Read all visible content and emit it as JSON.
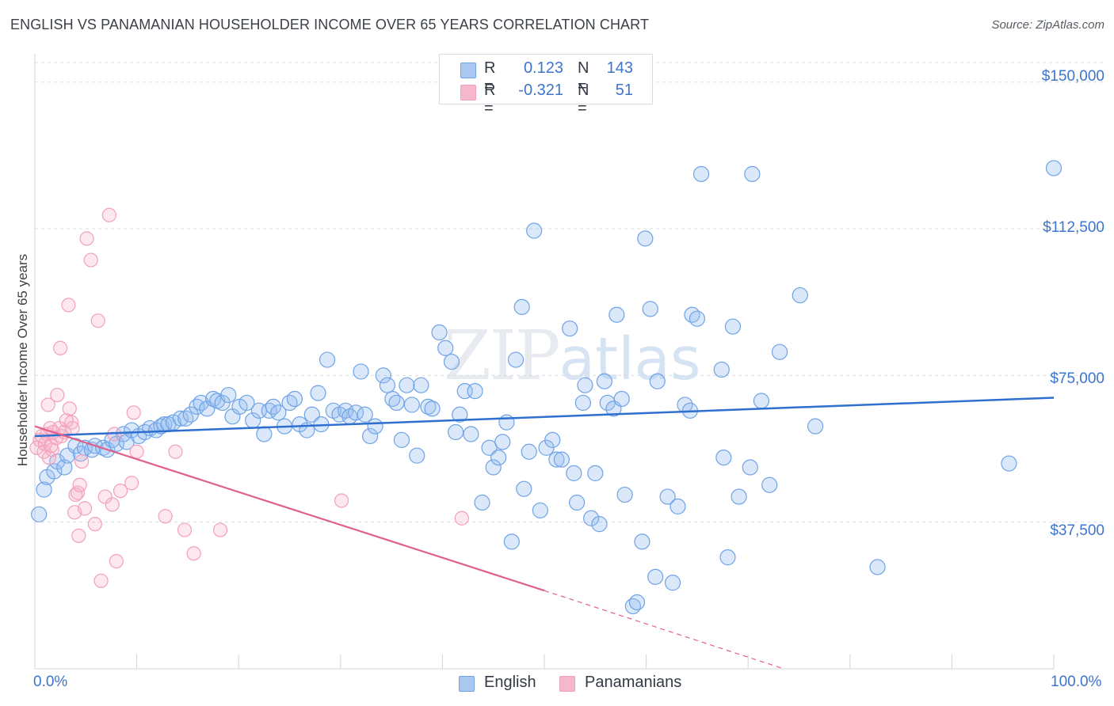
{
  "title": "ENGLISH VS PANAMANIAN HOUSEHOLDER INCOME OVER 65 YEARS CORRELATION CHART",
  "source": "Source: ZipAtlas.com",
  "watermark": {
    "zip": "ZIP",
    "atlas": "atlas"
  },
  "legend": {
    "rows": [
      {
        "r_label": "R =",
        "r_value": "0.123",
        "n_label": "N =",
        "n_value": "143",
        "color": "#aac8ef"
      },
      {
        "r_label": "R =",
        "r_value": "-0.321",
        "n_label": "N =",
        "n_value": "51",
        "color": "#f5b8cb"
      }
    ]
  },
  "colors": {
    "english": "#6fa3e6",
    "english_fill": "rgba(150,190,240,0.35)",
    "english_line": "#2f6fd0",
    "panamanian": "#f2a0bb",
    "panamanian_fill": "rgba(245,180,200,0.30)",
    "panamanian_line": "#e0608a",
    "grid": "#d8dde3",
    "tick_label": "#3d74cc"
  },
  "chart_data": {
    "type": "scatter",
    "title": "ENGLISH VS PANAMANIAN HOUSEHOLDER INCOME OVER 65 YEARS CORRELATION CHART",
    "xlabel": "",
    "ylabel": "Householder Income Over 65 years",
    "xlim": [
      0,
      100
    ],
    "ylim": [
      0,
      155000
    ],
    "x_tick_labels": [
      "0.0%",
      "100.0%"
    ],
    "y_ticks": [
      37500,
      75000,
      112500,
      150000
    ],
    "y_tick_labels": [
      "$37,500",
      "$75,000",
      "$112,500",
      "$150,000"
    ],
    "grid": "horizontal dashed",
    "legend_position": "top-center and bottom",
    "series": [
      {
        "name": "English",
        "r": 0.123,
        "n": 143,
        "trend": {
          "x": [
            0,
            100
          ],
          "y": [
            59500,
            69300
          ]
        },
        "points": [
          [
            0.4,
            39500
          ],
          [
            0.9,
            45800
          ],
          [
            1.2,
            49000
          ],
          [
            1.9,
            50500
          ],
          [
            2.2,
            53000
          ],
          [
            2.9,
            51500
          ],
          [
            3.2,
            54500
          ],
          [
            4.0,
            57000
          ],
          [
            4.5,
            55000
          ],
          [
            4.9,
            56500
          ],
          [
            5.6,
            56000
          ],
          [
            5.9,
            57000
          ],
          [
            6.7,
            56500
          ],
          [
            7.1,
            56000
          ],
          [
            7.6,
            58500
          ],
          [
            8.0,
            57500
          ],
          [
            8.7,
            60000
          ],
          [
            9.0,
            58000
          ],
          [
            9.5,
            61000
          ],
          [
            10.2,
            59500
          ],
          [
            10.8,
            60500
          ],
          [
            11.3,
            61500
          ],
          [
            11.9,
            61000
          ],
          [
            12.4,
            62000
          ],
          [
            12.7,
            62500
          ],
          [
            13.1,
            62500
          ],
          [
            13.6,
            63000
          ],
          [
            14.3,
            64000
          ],
          [
            14.8,
            64000
          ],
          [
            15.3,
            65000
          ],
          [
            15.9,
            67000
          ],
          [
            16.3,
            68000
          ],
          [
            16.9,
            66500
          ],
          [
            17.5,
            69000
          ],
          [
            17.9,
            68500
          ],
          [
            18.4,
            68000
          ],
          [
            19.0,
            70000
          ],
          [
            19.4,
            64500
          ],
          [
            20.1,
            67000
          ],
          [
            20.8,
            68000
          ],
          [
            21.4,
            63500
          ],
          [
            22.0,
            66000
          ],
          [
            22.5,
            60000
          ],
          [
            23.0,
            66000
          ],
          [
            23.4,
            67000
          ],
          [
            23.9,
            65500
          ],
          [
            24.5,
            62000
          ],
          [
            25.0,
            68000
          ],
          [
            25.5,
            69000
          ],
          [
            26.0,
            62500
          ],
          [
            26.7,
            61000
          ],
          [
            27.2,
            65000
          ],
          [
            27.8,
            70500
          ],
          [
            28.1,
            62500
          ],
          [
            28.7,
            79000
          ],
          [
            29.3,
            66000
          ],
          [
            29.9,
            65000
          ],
          [
            30.5,
            66000
          ],
          [
            30.9,
            64500
          ],
          [
            31.5,
            65500
          ],
          [
            32.0,
            76000
          ],
          [
            32.4,
            65000
          ],
          [
            32.9,
            59500
          ],
          [
            33.4,
            62000
          ],
          [
            34.2,
            75000
          ],
          [
            34.6,
            72500
          ],
          [
            35.1,
            69000
          ],
          [
            35.5,
            68000
          ],
          [
            36.0,
            58500
          ],
          [
            36.5,
            72500
          ],
          [
            37.0,
            67500
          ],
          [
            37.5,
            54500
          ],
          [
            37.9,
            72500
          ],
          [
            38.6,
            67000
          ],
          [
            39.0,
            66500
          ],
          [
            39.7,
            86000
          ],
          [
            40.3,
            82000
          ],
          [
            40.9,
            78500
          ],
          [
            41.3,
            60500
          ],
          [
            41.7,
            65000
          ],
          [
            42.2,
            71000
          ],
          [
            42.8,
            60000
          ],
          [
            43.2,
            71000
          ],
          [
            43.9,
            42500
          ],
          [
            44.6,
            56500
          ],
          [
            45.0,
            51500
          ],
          [
            45.5,
            54000
          ],
          [
            45.9,
            58000
          ],
          [
            46.3,
            63000
          ],
          [
            46.8,
            32500
          ],
          [
            47.2,
            79000
          ],
          [
            47.8,
            92500
          ],
          [
            48.0,
            46000
          ],
          [
            48.5,
            55500
          ],
          [
            49.0,
            112000
          ],
          [
            49.6,
            40500
          ],
          [
            50.2,
            56500
          ],
          [
            50.8,
            58500
          ],
          [
            51.2,
            53500
          ],
          [
            51.7,
            53500
          ],
          [
            52.5,
            87000
          ],
          [
            52.9,
            50000
          ],
          [
            53.2,
            42500
          ],
          [
            53.8,
            68000
          ],
          [
            54.0,
            72500
          ],
          [
            54.6,
            38500
          ],
          [
            55.0,
            50000
          ],
          [
            55.4,
            37000
          ],
          [
            55.9,
            73500
          ],
          [
            56.2,
            68000
          ],
          [
            56.8,
            66500
          ],
          [
            57.1,
            90500
          ],
          [
            57.6,
            69000
          ],
          [
            57.9,
            44500
          ],
          [
            58.7,
            16000
          ],
          [
            59.1,
            17000
          ],
          [
            59.6,
            32500
          ],
          [
            59.9,
            110000
          ],
          [
            60.4,
            92000
          ],
          [
            60.9,
            23500
          ],
          [
            61.1,
            73500
          ],
          [
            62.1,
            44000
          ],
          [
            62.6,
            22000
          ],
          [
            63.1,
            41500
          ],
          [
            63.8,
            67500
          ],
          [
            64.3,
            66000
          ],
          [
            64.5,
            90500
          ],
          [
            65.0,
            89500
          ],
          [
            65.4,
            126500
          ],
          [
            67.4,
            76500
          ],
          [
            67.6,
            54000
          ],
          [
            68.0,
            28500
          ],
          [
            68.5,
            87500
          ],
          [
            69.1,
            44000
          ],
          [
            70.2,
            51500
          ],
          [
            70.4,
            126500
          ],
          [
            71.3,
            68500
          ],
          [
            72.1,
            47000
          ],
          [
            73.1,
            81000
          ],
          [
            75.1,
            95500
          ],
          [
            76.6,
            62000
          ],
          [
            82.7,
            26000
          ],
          [
            95.6,
            52500
          ],
          [
            100.0,
            128000
          ]
        ]
      },
      {
        "name": "Panamanians",
        "r": -0.321,
        "n": 51,
        "trend": {
          "x": [
            0,
            50
          ],
          "y": [
            62000,
            20000
          ],
          "dashed_to": {
            "x": 73.5,
            "y": 0
          }
        },
        "points": [
          [
            0.2,
            56500
          ],
          [
            0.5,
            58500
          ],
          [
            0.7,
            59500
          ],
          [
            0.9,
            55500
          ],
          [
            1.0,
            57500
          ],
          [
            1.2,
            60000
          ],
          [
            1.3,
            67500
          ],
          [
            1.4,
            54000
          ],
          [
            1.5,
            61500
          ],
          [
            1.6,
            57000
          ],
          [
            1.7,
            56000
          ],
          [
            1.8,
            60500
          ],
          [
            2.1,
            59000
          ],
          [
            2.2,
            70000
          ],
          [
            2.4,
            61500
          ],
          [
            2.6,
            59500
          ],
          [
            2.9,
            60500
          ],
          [
            3.1,
            63500
          ],
          [
            3.3,
            93000
          ],
          [
            3.4,
            66500
          ],
          [
            3.6,
            63000
          ],
          [
            3.7,
            61500
          ],
          [
            3.9,
            40000
          ],
          [
            4.0,
            44500
          ],
          [
            4.2,
            45000
          ],
          [
            4.3,
            34000
          ],
          [
            4.4,
            47000
          ],
          [
            4.6,
            53000
          ],
          [
            4.9,
            41000
          ],
          [
            5.1,
            110000
          ],
          [
            5.5,
            104500
          ],
          [
            5.9,
            37000
          ],
          [
            6.2,
            89000
          ],
          [
            6.5,
            22500
          ],
          [
            6.9,
            44000
          ],
          [
            7.3,
            116000
          ],
          [
            7.6,
            42000
          ],
          [
            7.8,
            60000
          ],
          [
            8.0,
            27500
          ],
          [
            8.4,
            45500
          ],
          [
            9.5,
            47500
          ],
          [
            9.7,
            65500
          ],
          [
            10.0,
            55500
          ],
          [
            12.8,
            39000
          ],
          [
            13.8,
            55500
          ],
          [
            14.7,
            35500
          ],
          [
            15.6,
            29500
          ],
          [
            18.2,
            35500
          ],
          [
            30.1,
            43000
          ],
          [
            41.9,
            38500
          ],
          [
            2.5,
            82000
          ]
        ]
      }
    ]
  },
  "bottom_legend": [
    {
      "label": "English",
      "color": "#aac8ef"
    },
    {
      "label": "Panamanians",
      "color": "#f5b8cb"
    }
  ]
}
